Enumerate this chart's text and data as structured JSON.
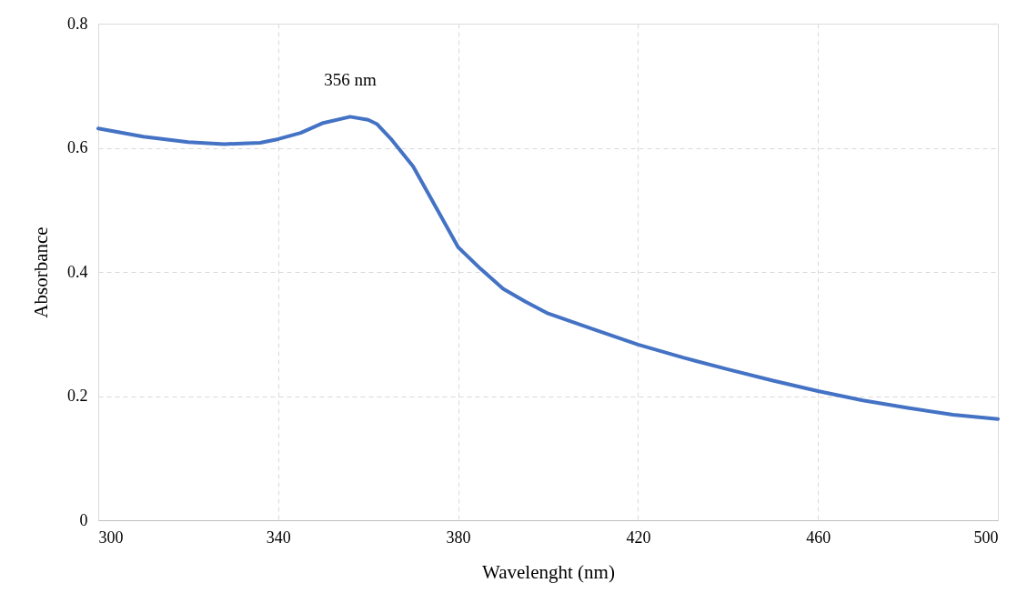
{
  "chart_data": {
    "type": "line",
    "xlabel": "Wavelenght (nm)",
    "ylabel": "Absorbance",
    "x": [
      300,
      310,
      320,
      328,
      336,
      340,
      345,
      350,
      356,
      360,
      362,
      365,
      370,
      375,
      380,
      385,
      390,
      395,
      400,
      410,
      420,
      430,
      440,
      450,
      460,
      470,
      480,
      490,
      500
    ],
    "series": [
      {
        "color": "#4472c4",
        "values": [
          0.631,
          0.618,
          0.609,
          0.606,
          0.608,
          0.614,
          0.624,
          0.64,
          0.65,
          0.645,
          0.638,
          0.615,
          0.57,
          0.505,
          0.44,
          0.405,
          0.373,
          0.352,
          0.333,
          0.308,
          0.283,
          0.262,
          0.243,
          0.225,
          0.208,
          0.193,
          0.181,
          0.17,
          0.163
        ]
      }
    ],
    "xlim": [
      300,
      500
    ],
    "xticks": [
      300,
      340,
      380,
      420,
      460,
      500
    ],
    "ylim": [
      0,
      0.8
    ],
    "yticks": [
      0,
      0.2,
      0.4,
      0.6,
      0.8
    ],
    "annotations": [
      {
        "text": "356 nm",
        "x": 356,
        "y": 0.65
      }
    ],
    "grid": true,
    "marker": "none",
    "line_style": "solid"
  }
}
